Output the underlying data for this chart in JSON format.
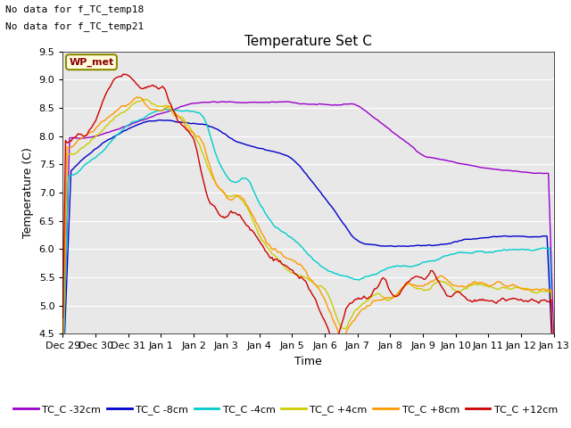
{
  "title": "Temperature Set C",
  "xlabel": "Time",
  "ylabel": "Temperature (C)",
  "ylim": [
    4.5,
    9.5
  ],
  "note1": "No data for f_TC_temp18",
  "note2": "No data for f_TC_temp21",
  "wp_label": "WP_met",
  "xtick_labels": [
    "Dec 29",
    "Dec 30",
    "Dec 31",
    "Jan 1",
    "Jan 2",
    "Jan 3",
    "Jan 4",
    "Jan 5",
    "Jan 6",
    "Jan 7",
    "Jan 8",
    "Jan 9",
    "Jan 10",
    "Jan 11",
    "Jan 12",
    "Jan 13"
  ],
  "bg_color": "#e8e8e8",
  "series_colors": {
    "TC_C -32cm": "#9900cc",
    "TC_C -8cm": "#0000cc",
    "TC_C -4cm": "#00cccc",
    "TC_C +4cm": "#cccc00",
    "TC_C +8cm": "#ff9900",
    "TC_C +12cm": "#cc0000"
  },
  "legend_labels": [
    "TC_C -32cm",
    "TC_C -8cm",
    "TC_C -4cm",
    "TC_C +4cm",
    "TC_C +8cm",
    "TC_C +12cm"
  ],
  "yticks": [
    4.5,
    5.0,
    5.5,
    6.0,
    6.5,
    7.0,
    7.5,
    8.0,
    8.5,
    9.0,
    9.5
  ],
  "figsize": [
    6.4,
    4.8
  ],
  "dpi": 100
}
